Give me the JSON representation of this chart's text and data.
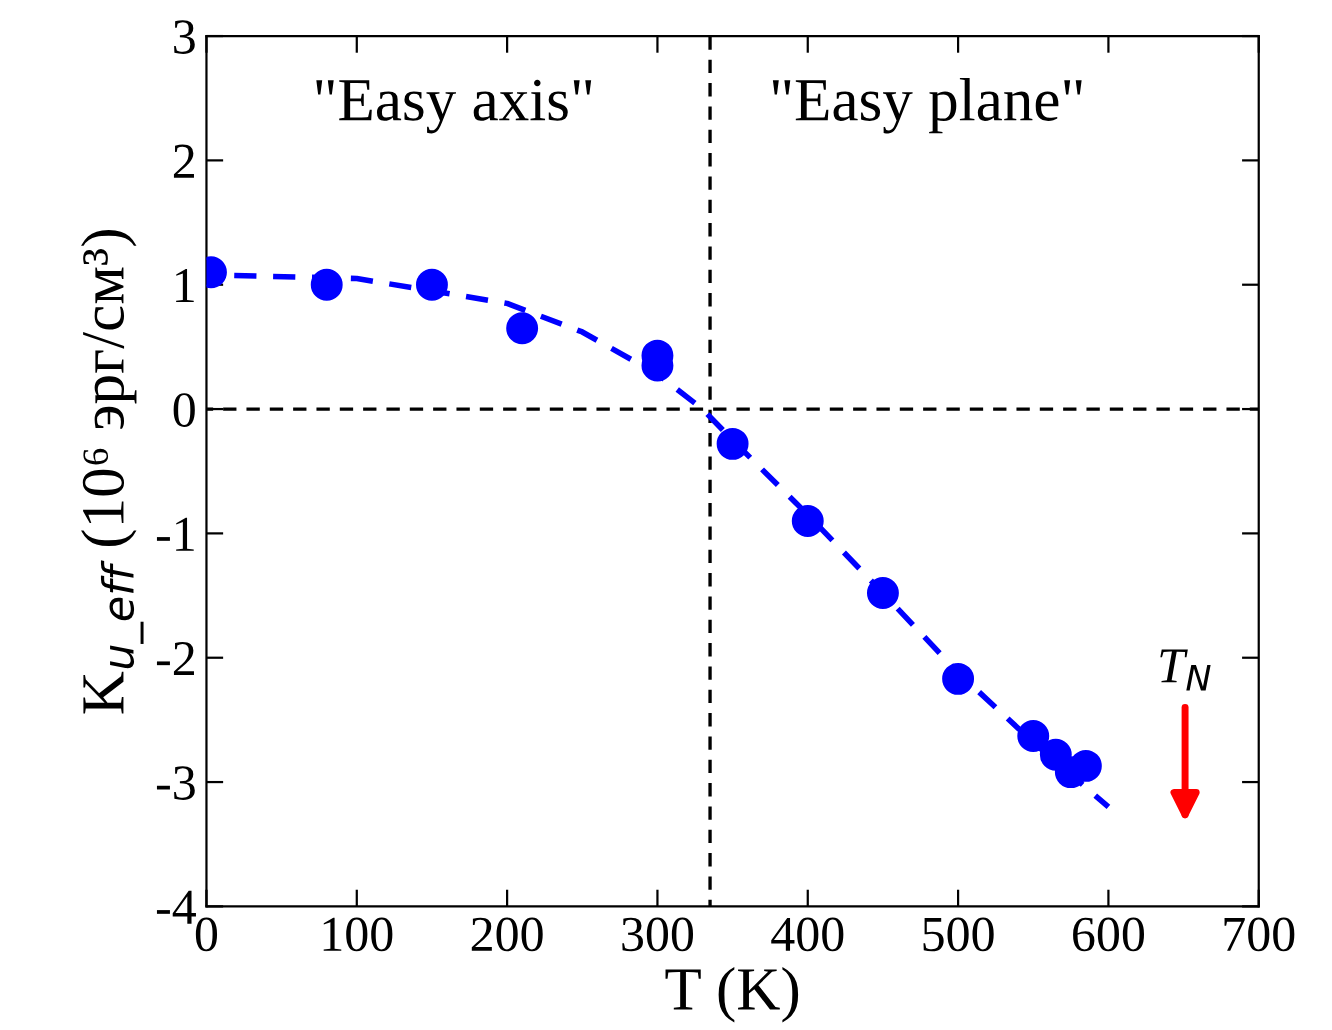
{
  "chart_data": {
    "type": "scatter",
    "xlabel": "T (K)",
    "ylabel": "K$_{u_eff}$ (10⁶ эрг/см³)",
    "xlim": [
      0,
      700
    ],
    "ylim": [
      -4,
      3
    ],
    "xticks": [
      0,
      100,
      200,
      300,
      400,
      500,
      600,
      700
    ],
    "yticks": [
      -4,
      -3,
      -2,
      -1,
      0,
      1,
      2,
      3
    ],
    "grid": false,
    "legend": false,
    "x": [
      3,
      80,
      150,
      210,
      300,
      300,
      350,
      400,
      450,
      500,
      550,
      565,
      575,
      585
    ],
    "series": [
      {
        "color": "#0000ff",
        "marker": "circle",
        "values": [
          1.1,
          1.0,
          1.0,
          0.65,
          0.43,
          0.35,
          -0.28,
          -0.9,
          -1.48,
          -2.17,
          -2.63,
          -2.78,
          -2.92,
          -2.87
        ]
      },
      {
        "type": "line",
        "color": "#0000ff",
        "line_style": "dashed",
        "x": [
          0,
          100,
          200,
          250,
          300,
          330,
          350,
          400,
          450,
          500,
          550,
          600
        ],
        "values": [
          1.08,
          1.05,
          0.85,
          0.62,
          0.28,
          0,
          -0.25,
          -0.85,
          -1.48,
          -2.12,
          -2.68,
          -3.2
        ]
      }
    ],
    "ref_lines": [
      {
        "axis": "x",
        "value": 335,
        "color": "#000000",
        "line_style": "dashed"
      },
      {
        "axis": "y",
        "value": 0,
        "color": "#000000",
        "line_style": "dashed"
      }
    ],
    "annotations": [
      "\"Easy axis\"",
      "\"Easy plane\"",
      "T$_{N}$"
    ]
  }
}
